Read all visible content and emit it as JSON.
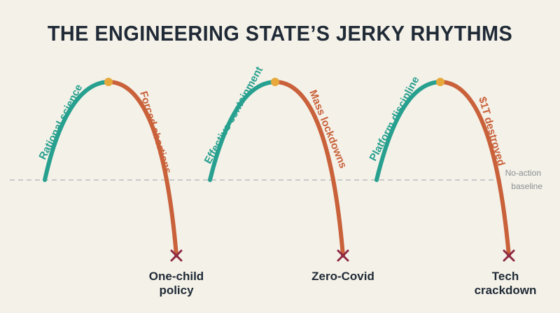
{
  "title": "THE ENGINEERING STATE’S JERKY RHYTHMS",
  "baseline": {
    "line1": "No-action",
    "line2": "baseline"
  },
  "colors": {
    "rise": "#27a08f",
    "fall": "#c9613a",
    "peak": "#e7a93c",
    "cross": "#8e2a44",
    "baseline": "#b9bcbc",
    "text": "#1f2a36"
  },
  "cycles": [
    {
      "rise_label": "Rational science",
      "fall_label": "Forced aborti ons",
      "policy_line1": "One-child",
      "policy_line2": "policy"
    },
    {
      "rise_label": "Effective containment",
      "fall_label": "Mass lockdowns",
      "policy_line1": "Zero-Covid",
      "policy_line2": ""
    },
    {
      "rise_label": "Platform discipline",
      "fall_label": "$1T destroyed",
      "policy_line1": "Tech",
      "policy_line2": "crackdown"
    }
  ]
}
